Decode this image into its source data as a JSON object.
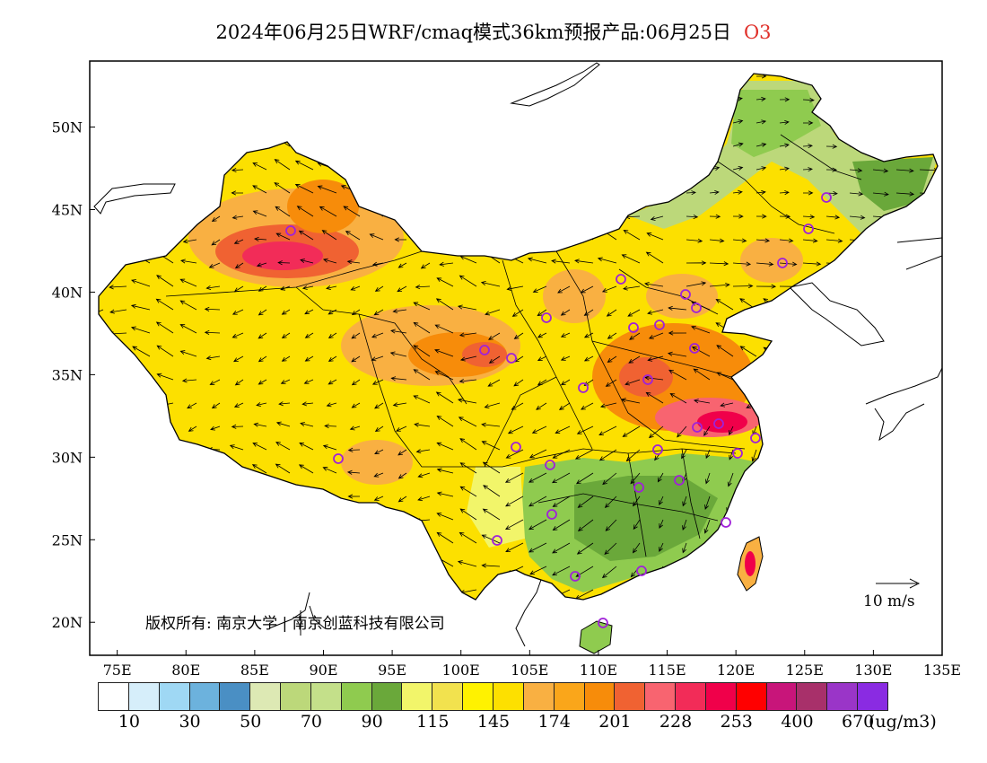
{
  "title": {
    "main": "2024年06月25日WRF/cmaq模式36km预报产品:06月25日",
    "species": "O3"
  },
  "axes": {
    "lat_labels": [
      "50N",
      "45N",
      "40N",
      "35N",
      "30N",
      "25N",
      "20N"
    ],
    "lon_labels": [
      "75E",
      "80E",
      "85E",
      "90E",
      "95E",
      "100E",
      "105E",
      "110E",
      "115E",
      "120E",
      "125E",
      "130E",
      "135E"
    ]
  },
  "copyright": "版权所有: 南京大学 | 南京创蓝科技有限公司",
  "wind_reference": "10 m/s",
  "legend": {
    "unit": "(ug/m3)",
    "labels": [
      "10",
      "30",
      "50",
      "70",
      "90",
      "115",
      "145",
      "174",
      "201",
      "228",
      "253",
      "400",
      "670"
    ],
    "colors": [
      "#ffffff",
      "#d6eefa",
      "#9fd8f4",
      "#6cb2dd",
      "#4a8fc4",
      "#dde9b4",
      "#bcd87a",
      "#c4e08a",
      "#8fcb4f",
      "#6aa83a",
      "#f2f56a",
      "#f2e24e",
      "#fff200",
      "#fde000",
      "#f9b042",
      "#faa61a",
      "#f78c0a",
      "#f06232",
      "#f86470",
      "#f22c58",
      "#f0004a",
      "#ff0000",
      "#c8157a",
      "#a8306a",
      "#9a35c8",
      "#8a2be2"
    ]
  },
  "icons": {
    "stations": "circle-marker-icon",
    "wind": "wind-arrow-icon"
  }
}
